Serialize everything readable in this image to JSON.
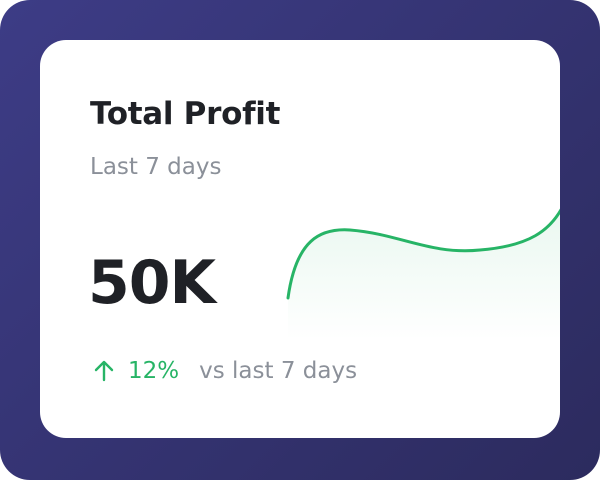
{
  "card": {
    "title": "Total Profit",
    "subtitle": "Last 7 days",
    "value": "50K",
    "change": "12%",
    "comparison": "vs last 7 days"
  }
}
